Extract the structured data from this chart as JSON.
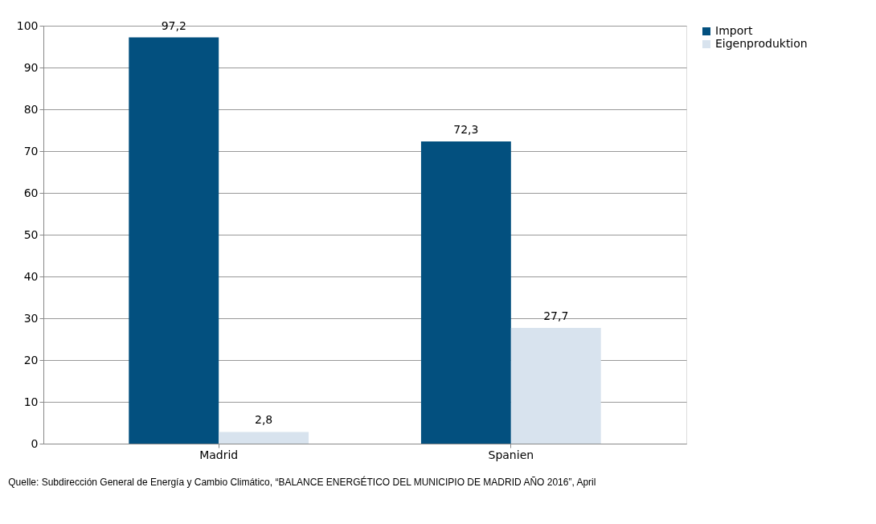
{
  "chart_data": {
    "type": "bar",
    "categories": [
      "Madrid",
      "Spanien"
    ],
    "series": [
      {
        "name": "Import",
        "color": "#03507f",
        "values": [
          97.2,
          72.3
        ],
        "value_labels": [
          "97,2",
          "72,3"
        ]
      },
      {
        "name": "Eigenproduktion",
        "color": "#d8e3ee",
        "values": [
          2.8,
          27.7
        ],
        "value_labels": [
          "2,8",
          "27,7"
        ]
      }
    ],
    "ylim": [
      0,
      100
    ],
    "yticks": [
      0,
      10,
      20,
      30,
      40,
      50,
      60,
      70,
      80,
      90,
      100
    ],
    "grid": "y",
    "legend": "right",
    "annotations": [
      "Quelle: Subdirección General de Energía y Cambio Climático, “BALANCE ENERGÉTICO DEL MUNICIPIO DE MADRID AÑO 2016”, April"
    ]
  }
}
